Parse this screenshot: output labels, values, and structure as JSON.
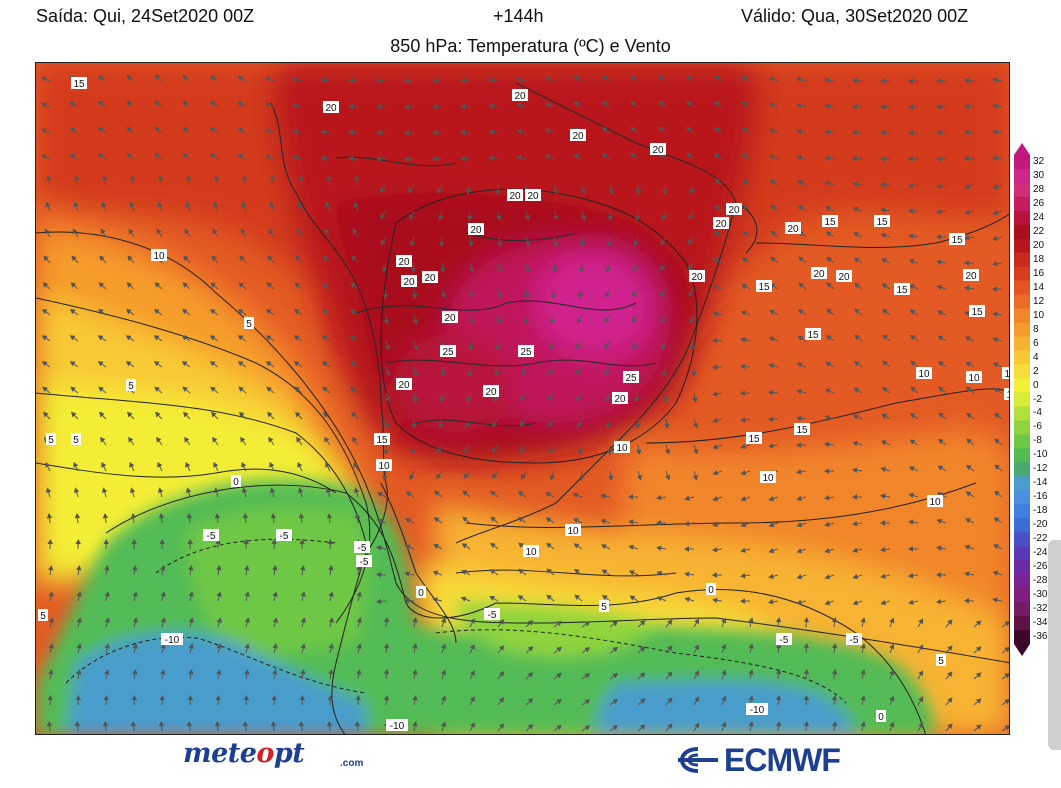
{
  "header": {
    "left": "Saída: Qui, 24Set2020 00Z",
    "center": "+144h",
    "right": "Válido: Qua, 30Set2020 00Z",
    "title": "850 hPa: Temperatura (ºC) e Vento"
  },
  "colorbar": {
    "labels": [
      "32",
      "30",
      "28",
      "26",
      "24",
      "22",
      "20",
      "18",
      "16",
      "14",
      "12",
      "10",
      "8",
      "6",
      "4",
      "2",
      "0",
      "-2",
      "-4",
      "-6",
      "-8",
      "-10",
      "-12",
      "-14",
      "-16",
      "-18",
      "-20",
      "-22",
      "-24",
      "-26",
      "-28",
      "-30",
      "-32",
      "-34",
      "-36"
    ],
    "colors": [
      "#c2187e",
      "#d0248e",
      "#cf2e7a",
      "#c41f5a",
      "#b8123a",
      "#a90f1c",
      "#b7161c",
      "#c82a1e",
      "#d83e1e",
      "#e55423",
      "#ec6b25",
      "#f1852a",
      "#f59b2c",
      "#f7b330",
      "#f8c934",
      "#f7dd37",
      "#f3ee36",
      "#d6ec38",
      "#b2e03a",
      "#8fd43e",
      "#6ec745",
      "#53bb55",
      "#4aa86f",
      "#4a9dcc",
      "#4b8fe0",
      "#3f7fe0",
      "#3d6cd6",
      "#4a4fc8",
      "#5a39b8",
      "#6b2aa6",
      "#7a2395",
      "#7f1e7e",
      "#761a63",
      "#5f1245",
      "#3c0729"
    ]
  },
  "map": {
    "contour_labels": [
      "15",
      "20",
      "20",
      "20",
      "20",
      "20",
      "20",
      "20",
      "20",
      "20",
      "20",
      "20",
      "20",
      "20",
      "20",
      "20",
      "20",
      "20",
      "20",
      "20",
      "20",
      "25",
      "25",
      "25",
      "20",
      "15",
      "15",
      "15",
      "15",
      "15",
      "15",
      "15",
      "15",
      "15",
      "15",
      "10",
      "10",
      "10",
      "10",
      "10",
      "10",
      "10",
      "10",
      "10",
      "10",
      "10",
      "5",
      "5",
      "5",
      "5",
      "5",
      "5",
      "5",
      "0",
      "0",
      "0",
      "0",
      "-5",
      "-5",
      "-5",
      "-5",
      "-5",
      "-5",
      "-5",
      "-10",
      "-10",
      "-10"
    ]
  },
  "logos": {
    "meteopt_prefix": "mete",
    "meteopt_o": "o",
    "meteopt_suffix": "pt",
    "meteopt_domain": ".com",
    "ecmwf": "ECMWF"
  }
}
